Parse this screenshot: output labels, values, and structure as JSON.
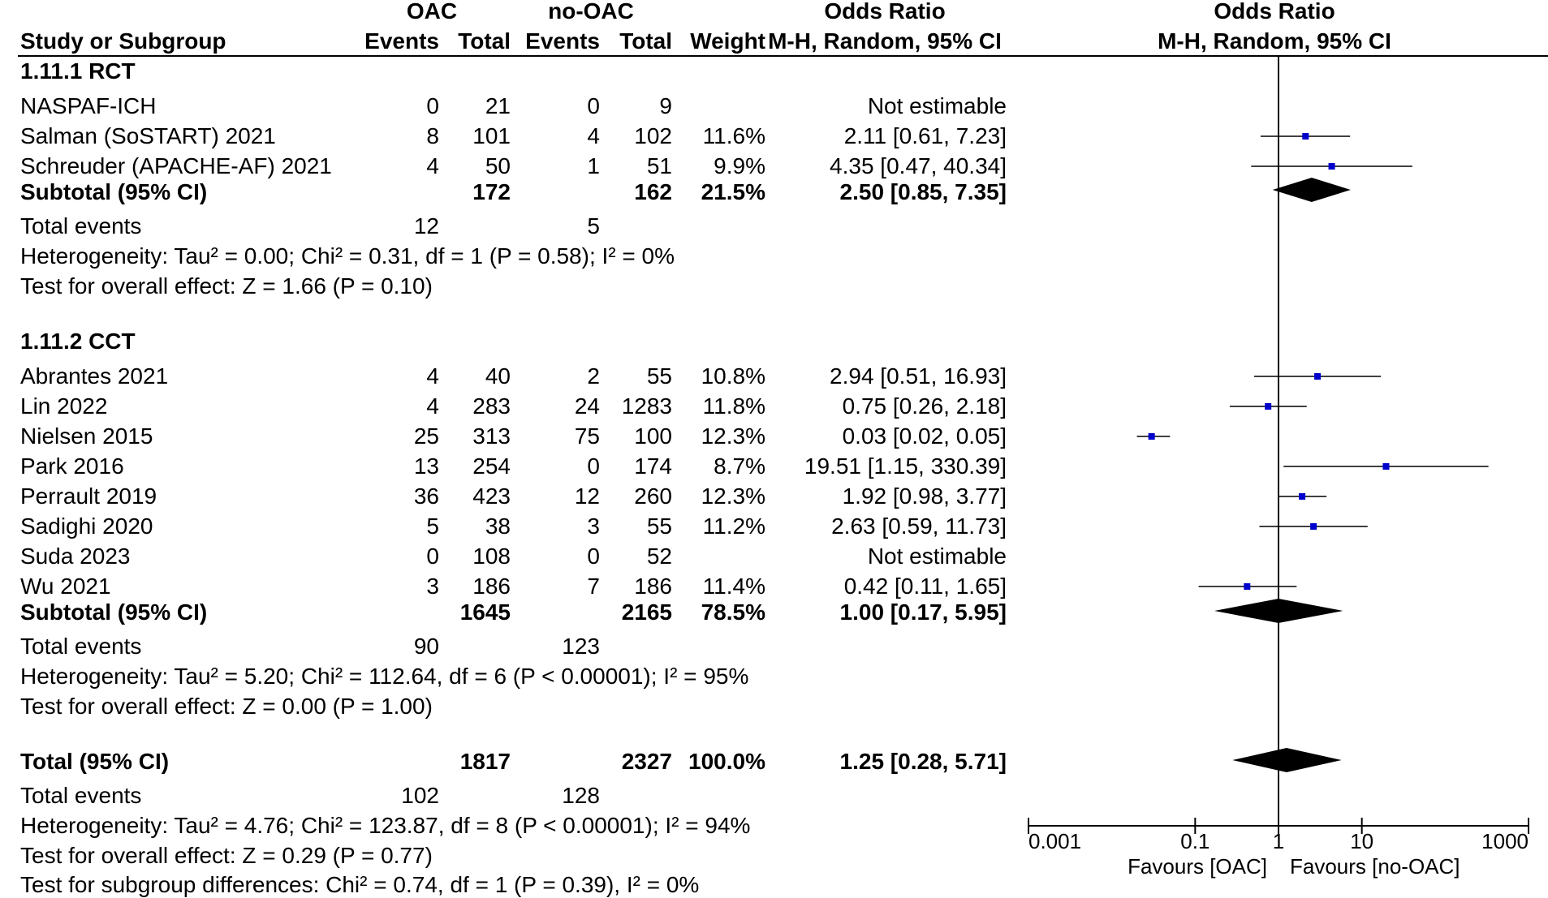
{
  "header": {
    "group_oac": "OAC",
    "group_nooac": "no-OAC",
    "or_title": "Odds Ratio",
    "or_sub": "M-H, Random, 95% CI",
    "plot_title": "Odds Ratio",
    "plot_sub": "M-H, Random, 95% CI",
    "col_study": "Study or Subgroup",
    "col_events": "Events",
    "col_total": "Total",
    "col_weight": "Weight"
  },
  "chart_data": {
    "type": "forest",
    "x_scale": "log",
    "xlim": [
      0.001,
      1000
    ],
    "ticks": [
      {
        "value": 0.001,
        "label": "0.001"
      },
      {
        "value": 0.1,
        "label": "0.1"
      },
      {
        "value": 1,
        "label": "1"
      },
      {
        "value": 10,
        "label": "10"
      },
      {
        "value": 1000,
        "label": "1000"
      }
    ],
    "favours_left": "Favours [OAC]",
    "favours_right": "Favours [no-OAC]",
    "subgroups": [
      {
        "title": "1.11.1 RCT",
        "studies": [
          {
            "name": "NASPAF-ICH",
            "e1": "0",
            "t1": "21",
            "e2": "0",
            "t2": "9",
            "weight": "",
            "ci_text": "Not estimable"
          },
          {
            "name": "Salman (SoSTART) 2021",
            "e1": "8",
            "t1": "101",
            "e2": "4",
            "t2": "102",
            "weight": "11.6%",
            "ci_text": "2.11 [0.61, 7.23]",
            "or": 2.11,
            "lo": 0.61,
            "hi": 7.23
          },
          {
            "name": "Schreuder (APACHE-AF) 2021",
            "e1": "4",
            "t1": "50",
            "e2": "1",
            "t2": "51",
            "weight": "9.9%",
            "ci_text": "4.35 [0.47, 40.34]",
            "or": 4.35,
            "lo": 0.47,
            "hi": 40.34
          }
        ],
        "subtotal": {
          "label": "Subtotal (95% CI)",
          "t1": "172",
          "t2": "162",
          "weight": "21.5%",
          "ci_text": "2.50 [0.85, 7.35]",
          "or": 2.5,
          "lo": 0.85,
          "hi": 7.35
        },
        "total_events": {
          "label": "Total events",
          "e1": "12",
          "e2": "5"
        },
        "heterogeneity": "Heterogeneity: Tau² = 0.00; Chi² = 0.31, df = 1 (P = 0.58); I² = 0%",
        "overall": "Test for overall effect: Z = 1.66 (P = 0.10)"
      },
      {
        "title": "1.11.2 CCT",
        "studies": [
          {
            "name": "Abrantes 2021",
            "e1": "4",
            "t1": "40",
            "e2": "2",
            "t2": "55",
            "weight": "10.8%",
            "ci_text": "2.94 [0.51, 16.93]",
            "or": 2.94,
            "lo": 0.51,
            "hi": 16.93
          },
          {
            "name": "Lin 2022",
            "e1": "4",
            "t1": "283",
            "e2": "24",
            "t2": "1283",
            "weight": "11.8%",
            "ci_text": "0.75 [0.26, 2.18]",
            "or": 0.75,
            "lo": 0.26,
            "hi": 2.18
          },
          {
            "name": "Nielsen 2015",
            "e1": "25",
            "t1": "313",
            "e2": "75",
            "t2": "100",
            "weight": "12.3%",
            "ci_text": "0.03 [0.02, 0.05]",
            "or": 0.03,
            "lo": 0.02,
            "hi": 0.05
          },
          {
            "name": "Park 2016",
            "e1": "13",
            "t1": "254",
            "e2": "0",
            "t2": "174",
            "weight": "8.7%",
            "ci_text": "19.51 [1.15, 330.39]",
            "or": 19.51,
            "lo": 1.15,
            "hi": 330.39
          },
          {
            "name": "Perrault 2019",
            "e1": "36",
            "t1": "423",
            "e2": "12",
            "t2": "260",
            "weight": "12.3%",
            "ci_text": "1.92 [0.98, 3.77]",
            "or": 1.92,
            "lo": 0.98,
            "hi": 3.77
          },
          {
            "name": "Sadighi 2020",
            "e1": "5",
            "t1": "38",
            "e2": "3",
            "t2": "55",
            "weight": "11.2%",
            "ci_text": "2.63 [0.59, 11.73]",
            "or": 2.63,
            "lo": 0.59,
            "hi": 11.73
          },
          {
            "name": "Suda 2023",
            "e1": "0",
            "t1": "108",
            "e2": "0",
            "t2": "52",
            "weight": "",
            "ci_text": "Not estimable"
          },
          {
            "name": "Wu 2021",
            "e1": "3",
            "t1": "186",
            "e2": "7",
            "t2": "186",
            "weight": "11.4%",
            "ci_text": "0.42 [0.11, 1.65]",
            "or": 0.42,
            "lo": 0.11,
            "hi": 1.65
          }
        ],
        "subtotal": {
          "label": "Subtotal (95% CI)",
          "t1": "1645",
          "t2": "2165",
          "weight": "78.5%",
          "ci_text": "1.00 [0.17, 5.95]",
          "or": 1.0,
          "lo": 0.17,
          "hi": 5.95
        },
        "total_events": {
          "label": "Total events",
          "e1": "90",
          "e2": "123"
        },
        "heterogeneity": "Heterogeneity: Tau² = 5.20; Chi² = 112.64, df = 6 (P < 0.00001); I² = 95%",
        "overall": "Test for overall effect: Z = 0.00 (P = 1.00)"
      }
    ],
    "total": {
      "label": "Total (95% CI)",
      "t1": "1817",
      "t2": "2327",
      "weight": "100.0%",
      "ci_text": "1.25 [0.28, 5.71]",
      "or": 1.25,
      "lo": 0.28,
      "hi": 5.71,
      "total_events": {
        "label": "Total events",
        "e1": "102",
        "e2": "128"
      },
      "heterogeneity": "Heterogeneity: Tau² = 4.76; Chi² = 123.87, df = 8 (P < 0.00001); I² = 94%",
      "overall": "Test for overall effect: Z = 0.29 (P = 0.77)",
      "subgroup_diff": "Test for subgroup differences: Chi² = 0.74, df = 1 (P = 0.39), I² = 0%"
    },
    "colors": {
      "marker": "#0000cc",
      "diamond": "#000000",
      "line": "#000000"
    }
  }
}
